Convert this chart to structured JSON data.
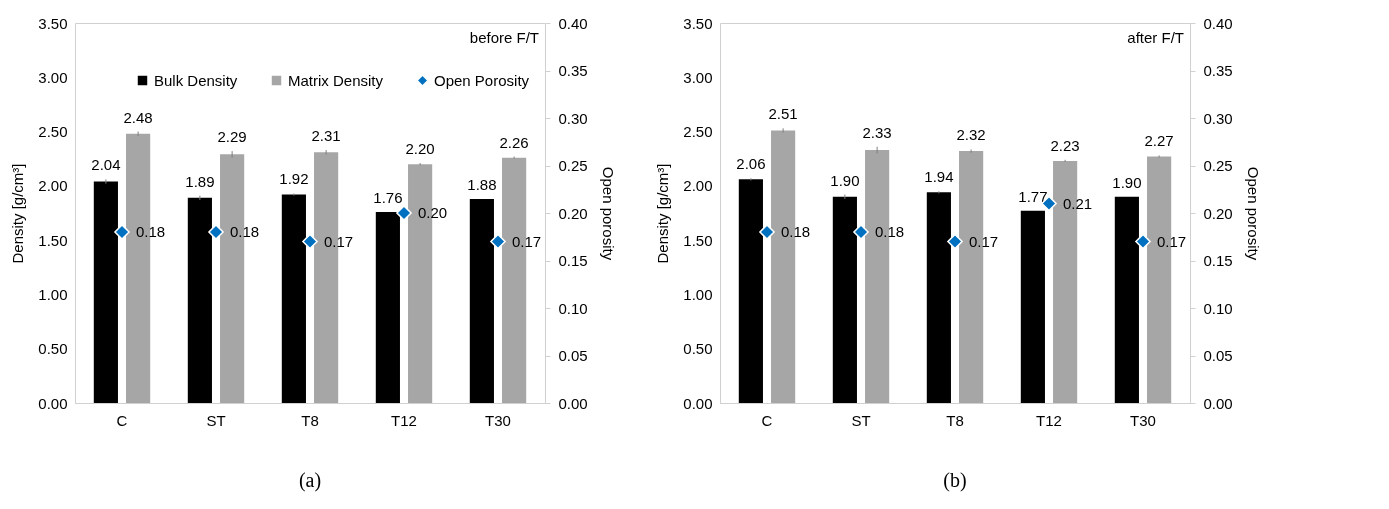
{
  "chart_data": [
    {
      "type": "bar",
      "categories": [
        "C",
        "ST",
        "T8",
        "T12",
        "T30"
      ],
      "ylabel": "Density [g/cm³]",
      "y2label": "Open porosity",
      "annotations": [
        "before F/T",
        "(a)"
      ],
      "legend": "top",
      "grid": false,
      "ylim": [
        0,
        3.5
      ],
      "yticks": [
        {
          "value": 0,
          "label": "0.00"
        },
        {
          "value": 0.5,
          "label": "0.50"
        },
        {
          "value": 1,
          "label": "1.00"
        },
        {
          "value": 1.5,
          "label": "1.50"
        },
        {
          "value": 2,
          "label": "2.00"
        },
        {
          "value": 2.5,
          "label": "2.50"
        },
        {
          "value": 3,
          "label": "3.00"
        },
        {
          "value": 3.5,
          "label": "3.50"
        }
      ],
      "y2lim": [
        0,
        0.4
      ],
      "y2ticks": [
        {
          "value": 0,
          "label": "0.00"
        },
        {
          "value": 0.05,
          "label": "0.05"
        },
        {
          "value": 0.1,
          "label": "0.10"
        },
        {
          "value": 0.15,
          "label": "0.15"
        },
        {
          "value": 0.2,
          "label": "0.20"
        },
        {
          "value": 0.25,
          "label": "0.25"
        },
        {
          "value": 0.3,
          "label": "0.30"
        },
        {
          "value": 0.35,
          "label": "0.35"
        },
        {
          "value": 0.4,
          "label": "0.40"
        }
      ],
      "series": [
        {
          "name": "Bulk Density",
          "type": "bar",
          "color": "#000000",
          "values": [
            2.04,
            1.89,
            1.92,
            1.76,
            1.88
          ],
          "errors": [
            0.02,
            0.02,
            0.01,
            null,
            null
          ],
          "value_labels": [
            "2.04",
            "1.89",
            "1.92",
            "1.76",
            "1.88"
          ]
        },
        {
          "name": "Matrix Density",
          "type": "bar",
          "color": "#a6a6a6",
          "values": [
            2.48,
            2.29,
            2.31,
            2.2,
            2.26
          ],
          "errors": [
            0.02,
            0.03,
            0.02,
            0.01,
            0.01
          ],
          "value_labels": [
            "2.48",
            "2.29",
            "2.31",
            "2.20",
            "2.26"
          ]
        },
        {
          "name": "Open Porosity",
          "type": "scatter",
          "axis": "y2",
          "marker": "diamond",
          "color": "#0070c0",
          "values": [
            0.18,
            0.18,
            0.17,
            0.2,
            0.17
          ],
          "value_labels": [
            "0.18",
            "0.18",
            "0.17",
            "0.20",
            "0.17"
          ]
        }
      ]
    },
    {
      "type": "bar",
      "categories": [
        "C",
        "ST",
        "T8",
        "T12",
        "T30"
      ],
      "ylabel": "Density [g/cm³]",
      "y2label": "Open porosity",
      "annotations": [
        "after F/T",
        "(b)"
      ],
      "legend": "top",
      "grid": false,
      "ylim": [
        0,
        3.5
      ],
      "yticks": [
        {
          "value": 0,
          "label": "0.00"
        },
        {
          "value": 0.5,
          "label": "0.50"
        },
        {
          "value": 1,
          "label": "1.00"
        },
        {
          "value": 1.5,
          "label": "1.50"
        },
        {
          "value": 2,
          "label": "2.00"
        },
        {
          "value": 2.5,
          "label": "2.50"
        },
        {
          "value": 3,
          "label": "3.00"
        },
        {
          "value": 3.5,
          "label": "3.50"
        }
      ],
      "y2lim": [
        0,
        0.4
      ],
      "y2ticks": [
        {
          "value": 0,
          "label": "0.00"
        },
        {
          "value": 0.05,
          "label": "0.05"
        },
        {
          "value": 0.1,
          "label": "0.10"
        },
        {
          "value": 0.15,
          "label": "0.15"
        },
        {
          "value": 0.2,
          "label": "0.20"
        },
        {
          "value": 0.25,
          "label": "0.25"
        },
        {
          "value": 0.3,
          "label": "0.30"
        },
        {
          "value": 0.35,
          "label": "0.35"
        },
        {
          "value": 0.4,
          "label": "0.40"
        }
      ],
      "series": [
        {
          "name": "Bulk Density",
          "type": "bar",
          "color": "#000000",
          "values": [
            2.06,
            1.9,
            1.94,
            1.77,
            1.9
          ],
          "errors": [
            0.01,
            0.02,
            0.01,
            null,
            null
          ],
          "value_labels": [
            "2.06",
            "1.90",
            "1.94",
            "1.77",
            "1.90"
          ]
        },
        {
          "name": "Matrix Density",
          "type": "bar",
          "color": "#a6a6a6",
          "values": [
            2.51,
            2.33,
            2.32,
            2.23,
            2.27
          ],
          "errors": [
            0.02,
            0.03,
            0.015,
            0.01,
            0.01
          ],
          "value_labels": [
            "2.51",
            "2.33",
            "2.32",
            "2.23",
            "2.27"
          ]
        },
        {
          "name": "Open Porosity",
          "type": "scatter",
          "axis": "y2",
          "marker": "diamond",
          "color": "#0070c0",
          "values": [
            0.18,
            0.18,
            0.17,
            0.21,
            0.17
          ],
          "value_labels": [
            "0.18",
            "0.18",
            "0.17",
            "0.21",
            "0.17"
          ]
        }
      ]
    }
  ]
}
